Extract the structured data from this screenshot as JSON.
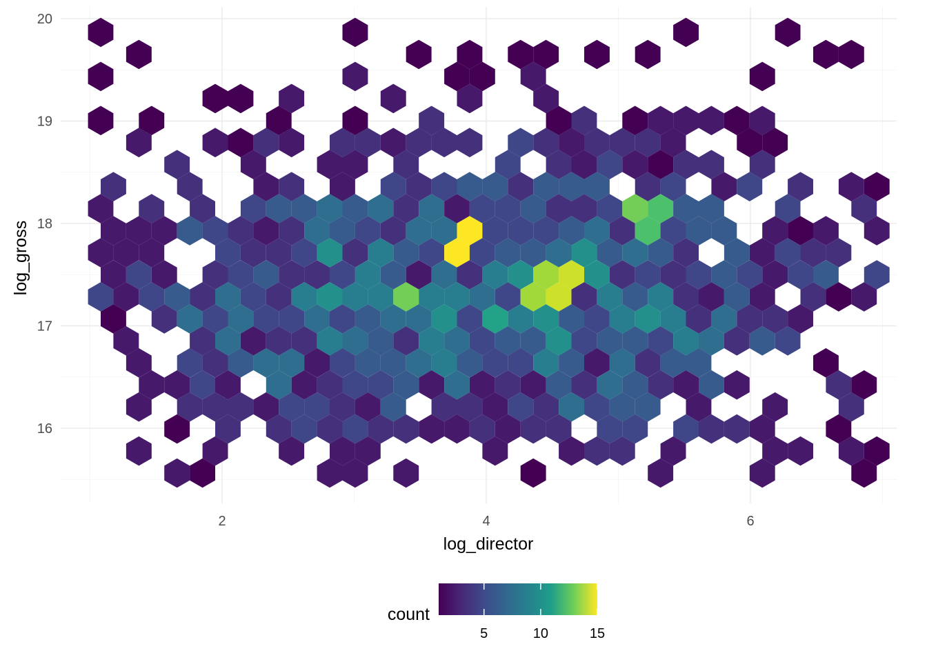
{
  "chart_data": {
    "type": "hexbin",
    "xlabel": "log_director",
    "ylabel": "log_gross",
    "xlim": [
      0.9,
      7.3
    ],
    "ylim": [
      15.3,
      20.1
    ],
    "x_ticks": [
      2,
      4,
      6
    ],
    "y_ticks": [
      16,
      17,
      18,
      19,
      20
    ],
    "x_tick_labels": [
      "2",
      "4",
      "6"
    ],
    "y_tick_labels": [
      "16",
      "17",
      "18",
      "19",
      "20"
    ],
    "grid": true,
    "theme": "minimal",
    "colorscale": "viridis",
    "colors": [
      "#440154",
      "#3b528b",
      "#21918c",
      "#5ec962",
      "#fde725"
    ],
    "legend": {
      "title": "count",
      "position": "bottom",
      "range": [
        1,
        15
      ],
      "ticks": [
        5,
        10,
        15
      ],
      "tick_labels": [
        "5",
        "10",
        "15"
      ]
    },
    "peak_bins": [
      {
        "x": 3.8,
        "y": 17.8,
        "count": 15
      },
      {
        "x": 4.6,
        "y": 17.4,
        "count": 14
      },
      {
        "x": 4.4,
        "y": 17.4,
        "count": 13
      },
      {
        "x": 3.4,
        "y": 17.25,
        "count": 12
      },
      {
        "x": 5.1,
        "y": 18.2,
        "count": 12
      },
      {
        "x": 5.3,
        "y": 18.05,
        "count": 11
      }
    ]
  }
}
